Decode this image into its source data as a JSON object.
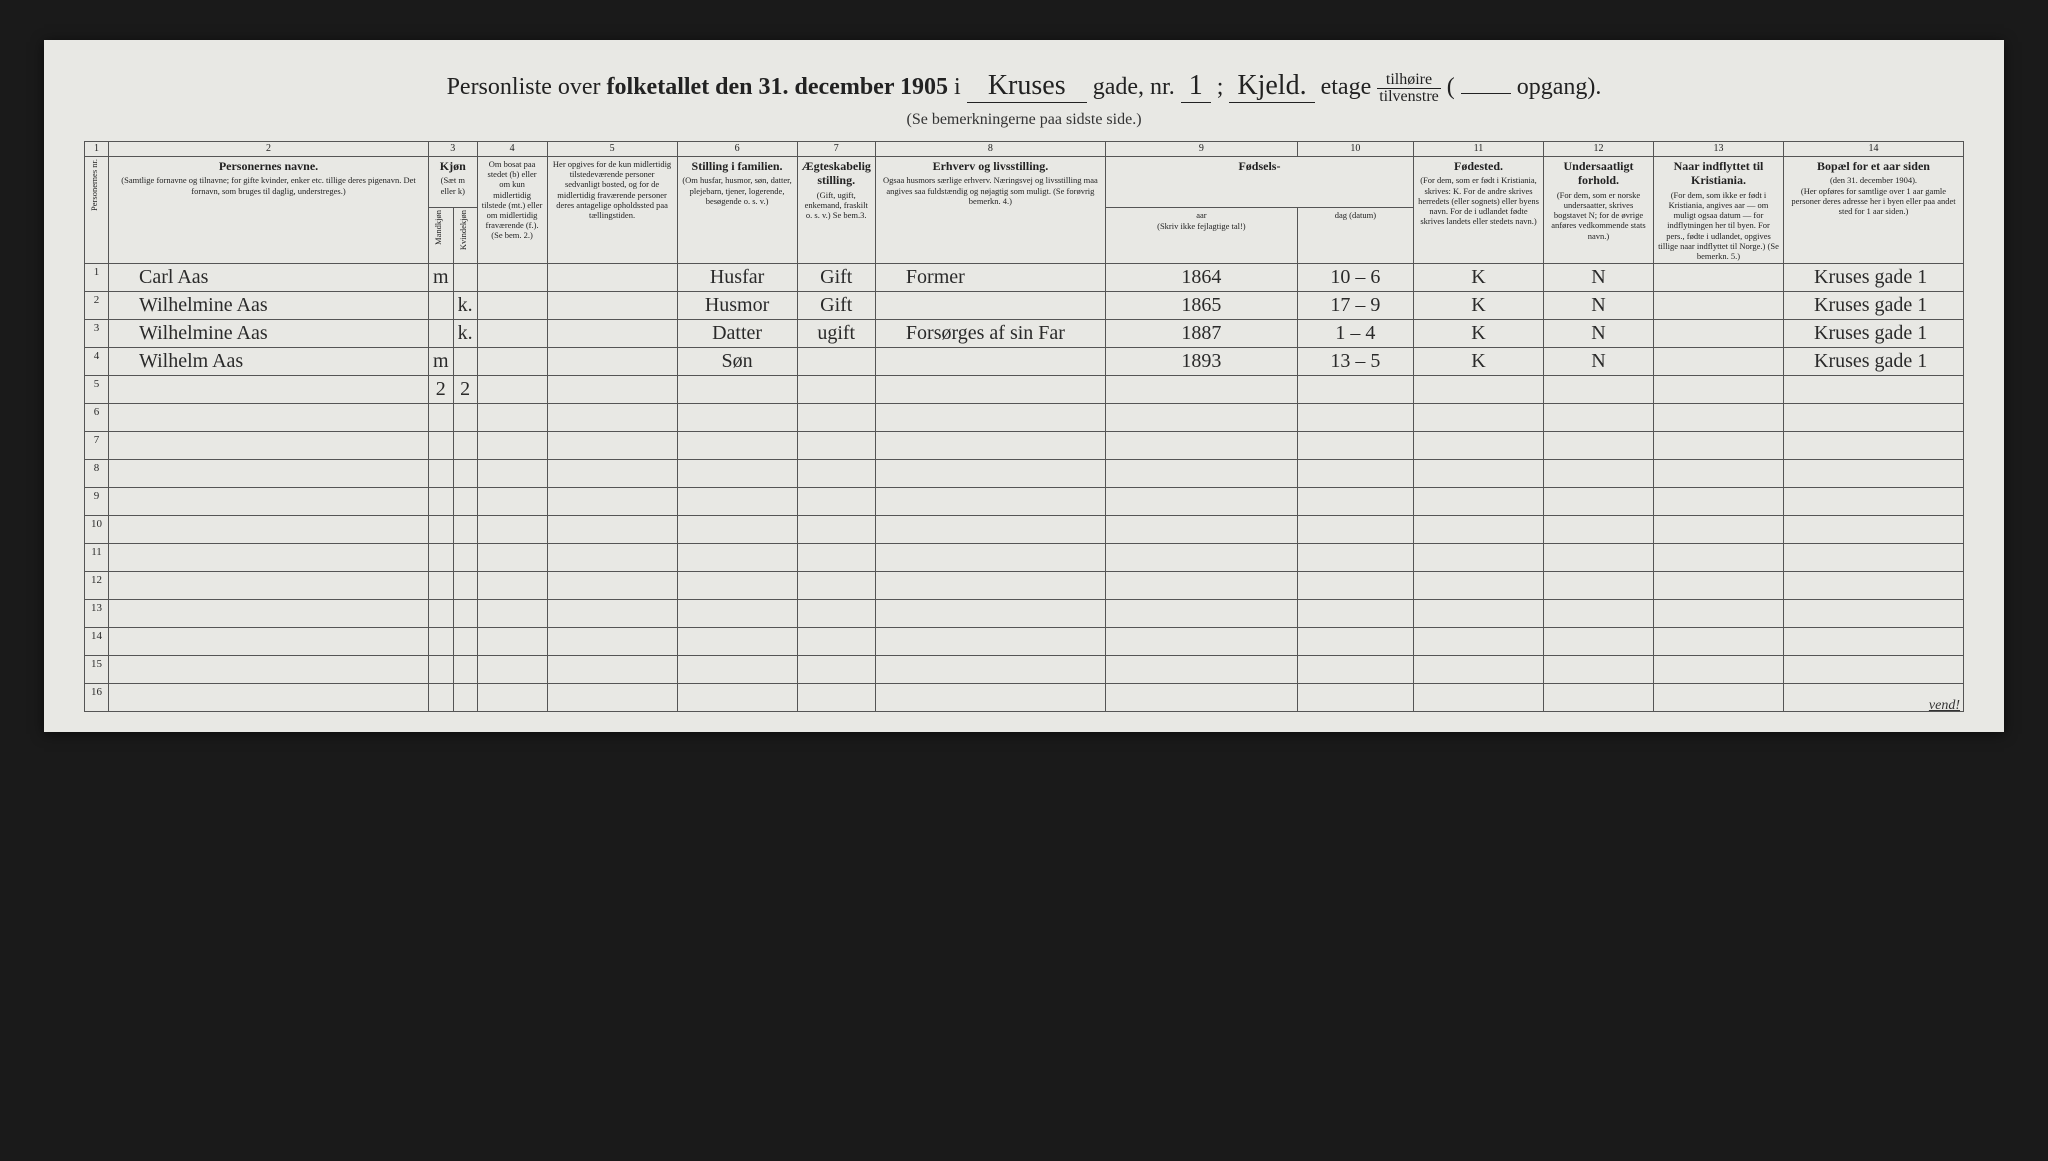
{
  "title": {
    "part1": "Personliste over ",
    "part2_bold": "folketallet den 31. december 1905",
    "part3": " i ",
    "street_script": "Kruses",
    "part4": " gade, nr. ",
    "street_nr": "1",
    "part5": " ; ",
    "floor_script": "Kjeld.",
    "part6": "etage ",
    "ratio_top": "tilhøire",
    "ratio_bot": "tilvenstre",
    "part7": " (",
    "opgang": "",
    "part8": " opgang)."
  },
  "subtitle": "(Se bemerkningerne paa sidste side.)",
  "colnums": [
    "1",
    "2",
    "3",
    "4",
    "5",
    "6",
    "7",
    "8",
    "9",
    "10",
    "11",
    "12",
    "13",
    "14"
  ],
  "headers": {
    "c1": {
      "main": "Personernes nr."
    },
    "c2": {
      "main": "Personernes navne.",
      "sub": "(Samtlige fornavne og tilnavne; for gifte kvinder, enker etc. tillige deres pigenavn. Det fornavn, som bruges til daglig, understreges.)"
    },
    "c3": {
      "main": "Kjøn",
      "sub": "(Sæt m eller k)",
      "sex_m": "Mandkjøn",
      "sex_k": "Kvindekjøn"
    },
    "c4": {
      "sub": "Om bosat paa stedet (b) eller om kun midlertidig tilstede (mt.) eller om midlertidig fraværende (f.). (Se bem. 2.)"
    },
    "c5": {
      "sub": "Her opgives for de kun midlertidig tilstedeværende personer sedvanligt bosted, og for de midlertidig fraværende personer deres antagelige opholdssted paa tællingstiden."
    },
    "c6": {
      "main": "Stilling i familien.",
      "sub": "(Om husfar, husmor, søn, datter, plejebarn, tjener, logerende, besøgende o. s. v.)"
    },
    "c7": {
      "main": "Ægteskabelig stilling.",
      "sub": "(Gift, ugift, enkemand, fraskilt o. s. v.) Se bem.3."
    },
    "c8": {
      "main": "Erhverv og livsstilling.",
      "sub": "Ogsaa husmors særlige erhverv. Næringsvej og livsstilling maa angives saa fuldstændig og nøjagtig som muligt. (Se forøvrig bemerkn. 4.)"
    },
    "c9_10": {
      "main": "Fødsels-",
      "sub": "(Skriv ikke fejlagtige tal!)",
      "c9": "aar",
      "c10": "dag (datum)"
    },
    "c11": {
      "main": "Fødested.",
      "sub": "(For dem, som er født i Kristiania, skrives: K. For de andre skrives herredets (eller sognets) eller byens navn. For de i udlandet fødte skrives landets eller stedets navn.)"
    },
    "c12": {
      "main": "Undersaatligt forhold.",
      "sub": "(For dem, som er norske undersaatter, skrives bogstavet N; for de øvrige anføres vedkommende stats navn.)"
    },
    "c13": {
      "main": "Naar indflyttet til Kristiania.",
      "sub": "(For dem, som ikke er født i Kristiania, angives aar — om muligt ogsaa datum — for indflytningen her til byen. For pers., fødte i udlandet, opgives tillige naar indflyttet til Norge.) (Se bemerkn. 5.)"
    },
    "c14": {
      "main": "Bopæl for et aar siden",
      "sub_line1": "(den 31. december 1904).",
      "sub": "(Her opføres for samtlige over 1 aar gamle personer deres adresse her i byen eller paa andet sted for 1 aar siden.)"
    }
  },
  "rows": [
    {
      "nr": "1",
      "name": "Carl   Aas",
      "sex_m": "m",
      "sex_k": "",
      "c4": "",
      "c5": "",
      "stilling": "Husfar",
      "aegt": "Gift",
      "erhverv": "Former",
      "aar": "1864",
      "dag": "10 – 6",
      "fodested": "K",
      "undersaat": "N",
      "indflyt": "",
      "bopael": "Kruses gade 1"
    },
    {
      "nr": "2",
      "name": "Wilhelmine   Aas",
      "sex_m": "",
      "sex_k": "k.",
      "c4": "",
      "c5": "",
      "stilling": "Husmor",
      "aegt": "Gift",
      "erhverv": "",
      "aar": "1865",
      "dag": "17 – 9",
      "fodested": "K",
      "undersaat": "N",
      "indflyt": "",
      "bopael": "Kruses gade 1"
    },
    {
      "nr": "3",
      "name": "Wilhelmine   Aas",
      "sex_m": "",
      "sex_k": "k.",
      "c4": "",
      "c5": "",
      "stilling": "Datter",
      "aegt": "ugift",
      "erhverv": "Forsørges af sin Far",
      "aar": "1887",
      "dag": "1 – 4",
      "fodested": "K",
      "undersaat": "N",
      "indflyt": "",
      "bopael": "Kruses gade 1"
    },
    {
      "nr": "4",
      "name": "Wilhelm   Aas",
      "sex_m": "m",
      "sex_k": "",
      "c4": "",
      "c5": "",
      "stilling": "Søn",
      "aegt": "",
      "erhverv": "",
      "aar": "1893",
      "dag": "13 – 5",
      "fodested": "K",
      "undersaat": "N",
      "indflyt": "",
      "bopael": "Kruses gade 1"
    }
  ],
  "tally": {
    "m": "2",
    "k": "2"
  },
  "empty_row_nrs": [
    "5",
    "6",
    "7",
    "8",
    "9",
    "10",
    "11",
    "12",
    "13",
    "14",
    "15",
    "16"
  ],
  "vend": "vend!",
  "xmark": "X",
  "colors": {
    "page_bg": "#1a1a1a",
    "paper_bg": "#e8e8e4",
    "ink": "#222222",
    "rule": "#555555"
  }
}
